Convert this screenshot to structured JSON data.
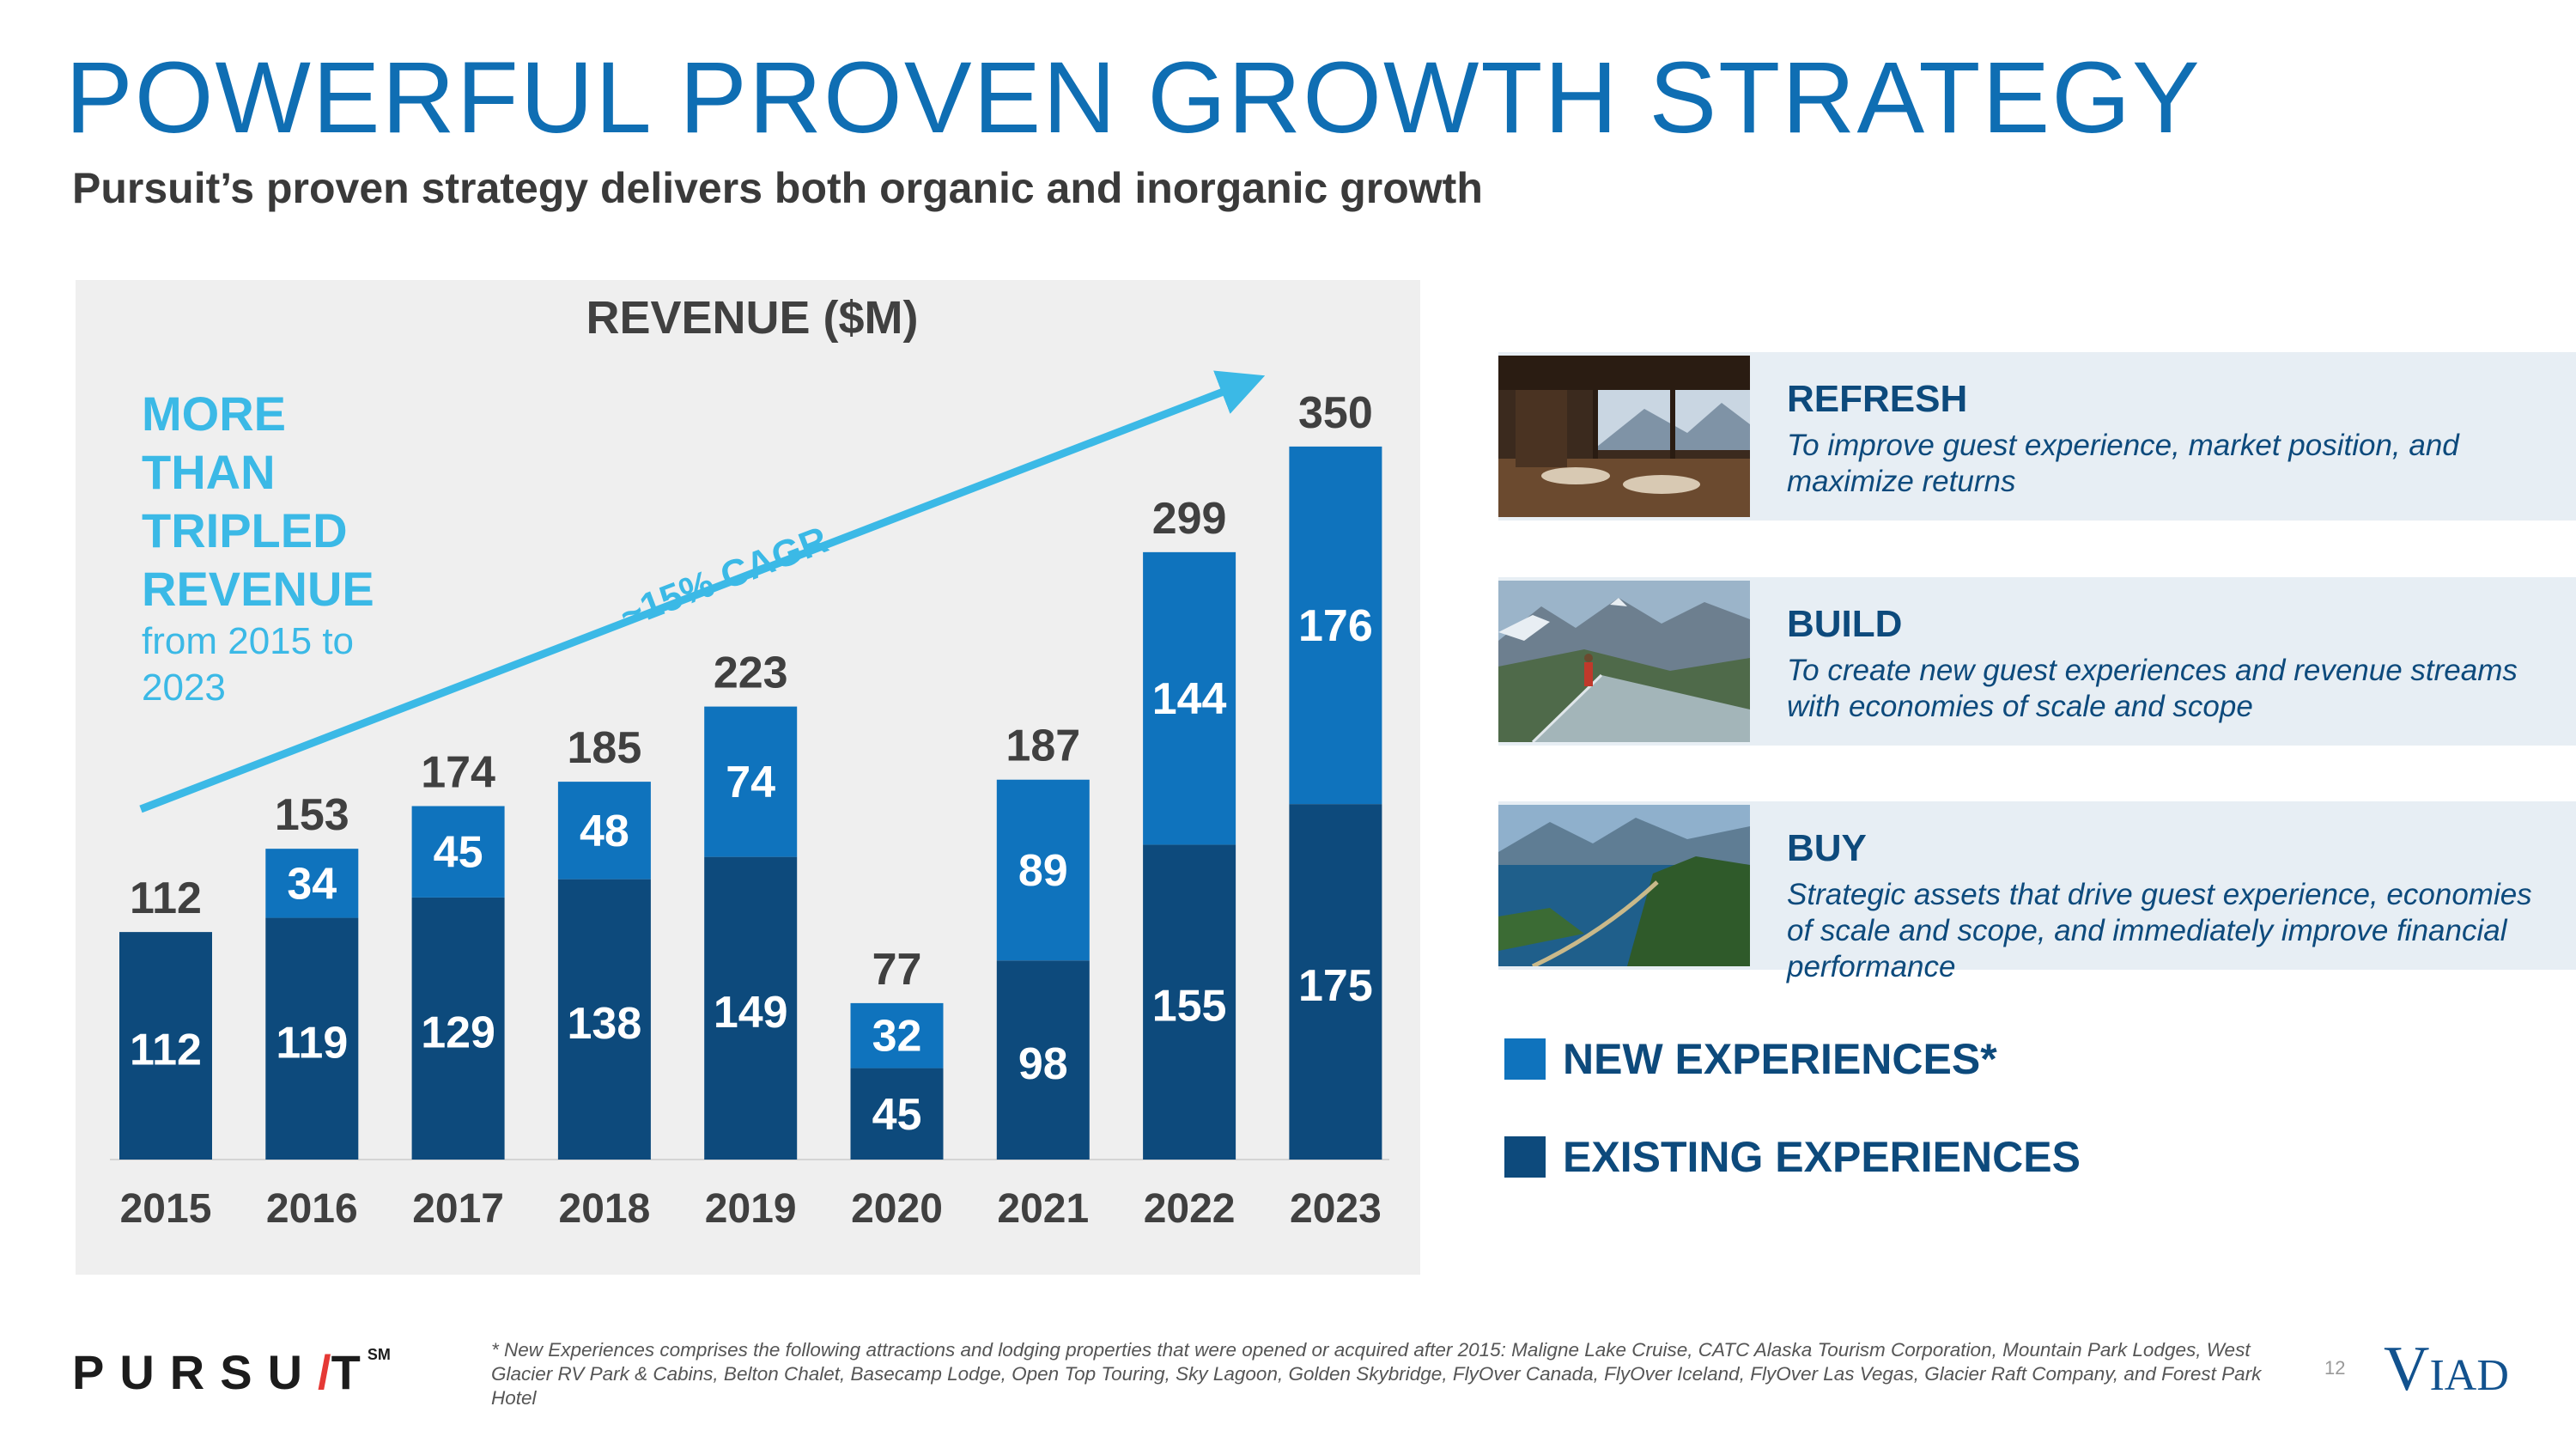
{
  "title": "POWERFUL PROVEN GROWTH STRATEGY",
  "subtitle": "Pursuit’s proven strategy delivers both organic and inorganic growth",
  "callout": {
    "lines": [
      "MORE",
      "THAN",
      "TRIPLED",
      "REVENUE"
    ],
    "detail": "from 2015 to 2023"
  },
  "cagr_label": "~15% CAGR",
  "chart_data": {
    "type": "bar",
    "stacked": true,
    "title": "REVENUE ($M)",
    "categories": [
      "2015",
      "2016",
      "2017",
      "2018",
      "2019",
      "2020",
      "2021",
      "2022",
      "2023"
    ],
    "series": [
      {
        "name": "EXISTING EXPERIENCES",
        "color": "#0d4a7c",
        "values": [
          112,
          119,
          129,
          138,
          149,
          45,
          98,
          155,
          175
        ]
      },
      {
        "name": "NEW EXPERIENCES*",
        "color": "#0f73bd",
        "values": [
          0,
          34,
          45,
          48,
          74,
          32,
          89,
          144,
          176
        ]
      }
    ],
    "totals": [
      112,
      153,
      174,
      185,
      223,
      77,
      187,
      299,
      350
    ],
    "ylim": [
      0,
      350
    ],
    "xlabel": "",
    "ylabel": "",
    "grid": false
  },
  "strategy": [
    {
      "name": "REFRESH",
      "desc": "To improve guest experience, market position, and maximize returns",
      "icon": "restaurant-photo"
    },
    {
      "name": "BUILD",
      "desc": "To create new guest experiences and revenue streams with economies of scale and scope",
      "icon": "skywalk-photo"
    },
    {
      "name": "BUY",
      "desc": "Strategic assets that drive guest experience, economies of scale and scope, and immediately improve financial performance",
      "icon": "lake-photo"
    }
  ],
  "legend": [
    {
      "label": "NEW EXPERIENCES*",
      "color": "#0f73bd"
    },
    {
      "label": "EXISTING EXPERIENCES",
      "color": "#0d4a7c"
    }
  ],
  "footer": {
    "logo": {
      "before": "PURSU",
      "slash": "/",
      "after": "T",
      "mark": "SM"
    },
    "footnote": "* New Experiences comprises the following attractions and lodging properties that were opened or acquired after 2015: Maligne Lake Cruise, CATC Alaska Tourism Corporation, Mountain Park Lodges, West Glacier RV Park & Cabins, Belton Chalet, Basecamp Lodge, Open Top Touring, Sky Lagoon, Golden Skybridge, FlyOver Canada, FlyOver Iceland, FlyOver Las Vegas, Glacier Raft Company, and Forest Park Hotel",
    "page_number": "12",
    "viad_logo": {
      "v": "V",
      "rest": "IAD"
    }
  }
}
